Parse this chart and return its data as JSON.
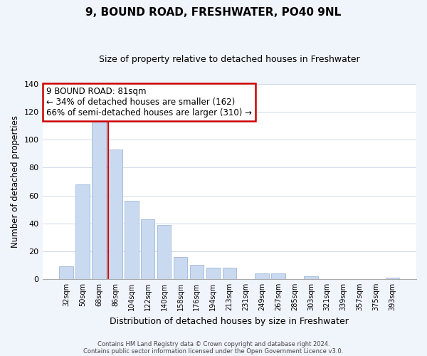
{
  "title": "9, BOUND ROAD, FRESHWATER, PO40 9NL",
  "subtitle": "Size of property relative to detached houses in Freshwater",
  "xlabel": "Distribution of detached houses by size in Freshwater",
  "ylabel": "Number of detached properties",
  "bar_labels": [
    "32sqm",
    "50sqm",
    "68sqm",
    "86sqm",
    "104sqm",
    "122sqm",
    "140sqm",
    "158sqm",
    "176sqm",
    "194sqm",
    "213sqm",
    "231sqm",
    "249sqm",
    "267sqm",
    "285sqm",
    "303sqm",
    "321sqm",
    "339sqm",
    "357sqm",
    "375sqm",
    "393sqm"
  ],
  "bar_values": [
    9,
    68,
    113,
    93,
    56,
    43,
    39,
    16,
    10,
    8,
    8,
    0,
    4,
    4,
    0,
    2,
    0,
    0,
    0,
    0,
    1
  ],
  "bar_color": "#c9d9f0",
  "bar_edge_color": "#a0b8d8",
  "ylim": [
    0,
    140
  ],
  "yticks": [
    0,
    20,
    40,
    60,
    80,
    100,
    120,
    140
  ],
  "property_line_color": "#cc0000",
  "annotation_title": "9 BOUND ROAD: 81sqm",
  "annotation_line1": "← 34% of detached houses are smaller (162)",
  "annotation_line2": "66% of semi-detached houses are larger (310) →",
  "annotation_box_color": "#ffffff",
  "annotation_box_edge": "#cc0000",
  "footer_line1": "Contains HM Land Registry data © Crown copyright and database right 2024.",
  "footer_line2": "Contains public sector information licensed under the Open Government Licence v3.0.",
  "background_color": "#f0f4fb",
  "plot_bg_color": "#ffffff",
  "grid_color": "#d0daea"
}
